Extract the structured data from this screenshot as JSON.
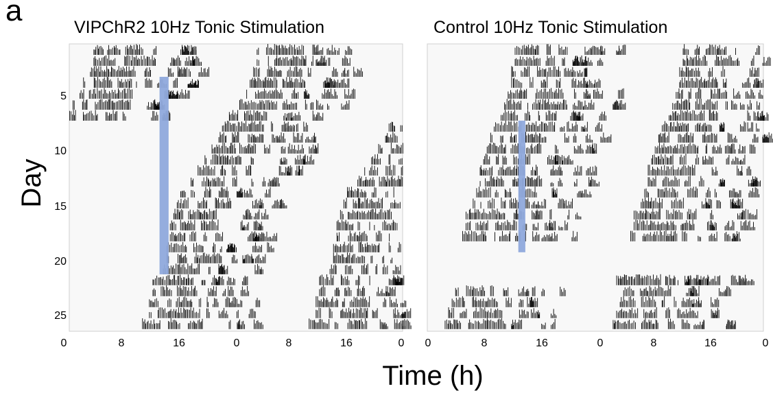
{
  "figure": {
    "panel_letter": "a",
    "xlabel": "Time (h)",
    "ylabel": "Day"
  },
  "chart_data": [
    {
      "type": "actogram",
      "title": "VIPChR2 10Hz Tonic Stimulation",
      "x_ticks": [
        "0",
        "8",
        "16",
        "0",
        "8",
        "16",
        "0"
      ],
      "xlim": [
        0,
        48
      ],
      "y_ticks": [
        "5",
        "10",
        "15",
        "20",
        "25"
      ],
      "ylim": [
        1,
        26
      ],
      "stimulation_color": "#8fa9dc",
      "stimulation_window": {
        "x_start_h": 13.0,
        "x_end_h": 14.3,
        "day_start": 4,
        "day_end": 21
      },
      "activity_onset_h": [
        [
          3.5,
          27.0
        ],
        [
          3.5,
          27.0
        ],
        [
          3.0,
          26.5
        ],
        [
          2.0,
          26.0
        ],
        [
          1.5,
          25.5
        ],
        [
          0.5,
          24.5
        ],
        [
          0.0,
          23.0
        ],
        [
          22.0,
          46.0
        ],
        [
          21.5,
          45.5
        ],
        [
          20.5,
          44.5
        ],
        [
          19.5,
          43.5
        ],
        [
          18.5,
          42.5
        ],
        [
          17.5,
          41.5
        ],
        [
          16.0,
          40.0
        ],
        [
          15.5,
          39.5
        ],
        [
          15.0,
          39.0
        ],
        [
          14.5,
          38.5
        ],
        [
          14.5,
          38.5
        ],
        [
          14.0,
          38.0
        ],
        [
          14.0,
          38.0
        ],
        [
          13.5,
          37.5
        ],
        [
          12.0,
          36.0
        ],
        [
          12.0,
          36.0
        ],
        [
          11.5,
          35.5
        ],
        [
          11.5,
          35.5
        ],
        [
          10.5,
          34.5
        ]
      ]
    },
    {
      "type": "actogram",
      "title": "Control 10Hz Tonic Stimulation",
      "x_ticks": [
        "0",
        "8",
        "16",
        "0",
        "8",
        "16",
        "0"
      ],
      "xlim": [
        0,
        48
      ],
      "y_ticks": [],
      "ylim": [
        1,
        26
      ],
      "stimulation_color": "#8fa9dc",
      "stimulation_window": {
        "x_start_h": 13.0,
        "x_end_h": 14.0,
        "day_start": 8,
        "day_end": 19
      },
      "activity_onset_h": [
        [
          12.5,
          36.5
        ],
        [
          12.5,
          36.5
        ],
        [
          12.0,
          36.0
        ],
        [
          12.0,
          36.0
        ],
        [
          11.5,
          35.5
        ],
        [
          11.0,
          35.0
        ],
        [
          10.5,
          34.5
        ],
        [
          9.5,
          33.5
        ],
        [
          9.0,
          33.0
        ],
        [
          8.5,
          32.5
        ],
        [
          8.0,
          32.0
        ],
        [
          7.5,
          31.5
        ],
        [
          7.5,
          31.5
        ],
        [
          7.0,
          31.0
        ],
        [
          6.5,
          30.5
        ],
        [
          5.5,
          29.5
        ],
        [
          5.5,
          29.5
        ],
        [
          5.0,
          29.0
        ],
        [
          null,
          null
        ],
        [
          null,
          null
        ],
        [
          null,
          null
        ],
        [
          27.0,
          34.0
        ],
        [
          4.0,
          28.0
        ],
        [
          3.5,
          27.5
        ],
        [
          3.0,
          27.0
        ],
        [
          2.5,
          26.5
        ]
      ]
    }
  ]
}
